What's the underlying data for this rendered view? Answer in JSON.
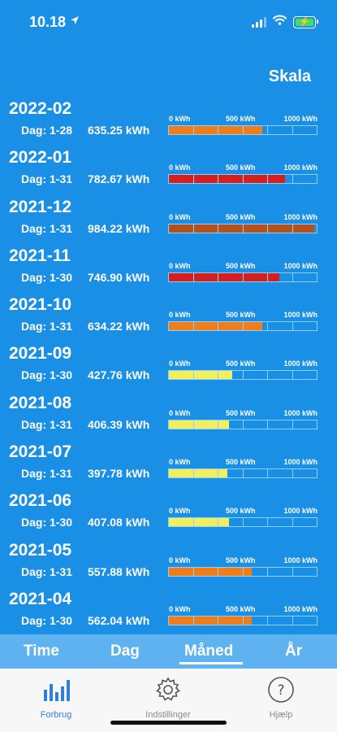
{
  "status": {
    "time": "10.18"
  },
  "header": {
    "scale_title": "Skala"
  },
  "scale": {
    "min": "0 kWh",
    "mid": "500 kWh",
    "max": "1000 kWh"
  },
  "colors": {
    "yellow": "#f2f05a",
    "orange": "#ef7d1a",
    "red": "#d41f1f",
    "brown": "#b5501f"
  },
  "rows": [
    {
      "month": "2022-02",
      "days": "Dag: 1-28",
      "kwh": "635.25 kWh",
      "value": 635.25,
      "color": "orange"
    },
    {
      "month": "2022-01",
      "days": "Dag: 1-31",
      "kwh": "782.67 kWh",
      "value": 782.67,
      "color": "red"
    },
    {
      "month": "2021-12",
      "days": "Dag: 1-31",
      "kwh": "984.22 kWh",
      "value": 984.22,
      "color": "brown"
    },
    {
      "month": "2021-11",
      "days": "Dag: 1-30",
      "kwh": "746.90 kWh",
      "value": 746.9,
      "color": "red"
    },
    {
      "month": "2021-10",
      "days": "Dag: 1-31",
      "kwh": "634.22 kWh",
      "value": 634.22,
      "color": "orange"
    },
    {
      "month": "2021-09",
      "days": "Dag: 1-30",
      "kwh": "427.76 kWh",
      "value": 427.76,
      "color": "yellow"
    },
    {
      "month": "2021-08",
      "days": "Dag: 1-31",
      "kwh": "406.39 kWh",
      "value": 406.39,
      "color": "yellow"
    },
    {
      "month": "2021-07",
      "days": "Dag: 1-31",
      "kwh": "397.78 kWh",
      "value": 397.78,
      "color": "yellow"
    },
    {
      "month": "2021-06",
      "days": "Dag: 1-30",
      "kwh": "407.08 kWh",
      "value": 407.08,
      "color": "yellow"
    },
    {
      "month": "2021-05",
      "days": "Dag: 1-31",
      "kwh": "557.88 kWh",
      "value": 557.88,
      "color": "orange"
    },
    {
      "month": "2021-04",
      "days": "Dag: 1-30",
      "kwh": "562.04 kWh",
      "value": 562.04,
      "color": "orange"
    }
  ],
  "tabs": {
    "time": "Time",
    "dag": "Dag",
    "maaned": "Måned",
    "aar": "År",
    "selected": "Måned"
  },
  "bottom_nav": {
    "forbrug": "Forbrug",
    "indstillinger": "Indstillinger",
    "hjaelp": "Hjælp"
  }
}
